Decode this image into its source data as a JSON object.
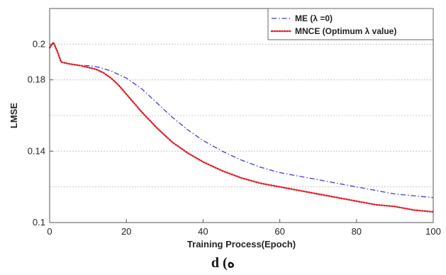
{
  "chart_data": {
    "type": "line",
    "xlabel": "Training Process(Epoch)",
    "ylabel": "LMSE",
    "xlim": [
      0,
      100
    ],
    "ylim": [
      0.1,
      0.22
    ],
    "x_ticks": [
      "0",
      "20",
      "40",
      "60",
      "80",
      "100"
    ],
    "y_ticks": [
      "0.1",
      "0.14",
      "0.18",
      "0.2"
    ],
    "grid": true,
    "legend_position": "top-right",
    "series": [
      {
        "name": "ME (λ =0)",
        "color": "#3b3bd4",
        "style": "dash-dot",
        "x": [
          0,
          1,
          2,
          3,
          5,
          8,
          10,
          13,
          16,
          20,
          24,
          28,
          32,
          36,
          40,
          45,
          50,
          55,
          60,
          65,
          70,
          75,
          80,
          85,
          90,
          95,
          100
        ],
        "y": [
          0.198,
          0.201,
          0.196,
          0.19,
          0.189,
          0.188,
          0.188,
          0.187,
          0.185,
          0.181,
          0.175,
          0.167,
          0.159,
          0.152,
          0.146,
          0.14,
          0.135,
          0.131,
          0.128,
          0.126,
          0.124,
          0.122,
          0.12,
          0.118,
          0.116,
          0.115,
          0.114
        ]
      },
      {
        "name": "MNCE (Optimum λ value)",
        "color": "#e0202a",
        "style": "dotted",
        "x": [
          0,
          1,
          2,
          3,
          5,
          8,
          10,
          12,
          14,
          16,
          18,
          20,
          24,
          28,
          32,
          36,
          40,
          45,
          50,
          55,
          60,
          65,
          70,
          75,
          80,
          85,
          90,
          95,
          100
        ],
        "y": [
          0.198,
          0.201,
          0.196,
          0.19,
          0.189,
          0.188,
          0.187,
          0.186,
          0.184,
          0.181,
          0.177,
          0.172,
          0.162,
          0.153,
          0.145,
          0.139,
          0.134,
          0.129,
          0.125,
          0.122,
          0.12,
          0.118,
          0.116,
          0.114,
          0.112,
          0.11,
          0.109,
          0.107,
          0.106
        ]
      }
    ]
  },
  "caption": "d (ه"
}
